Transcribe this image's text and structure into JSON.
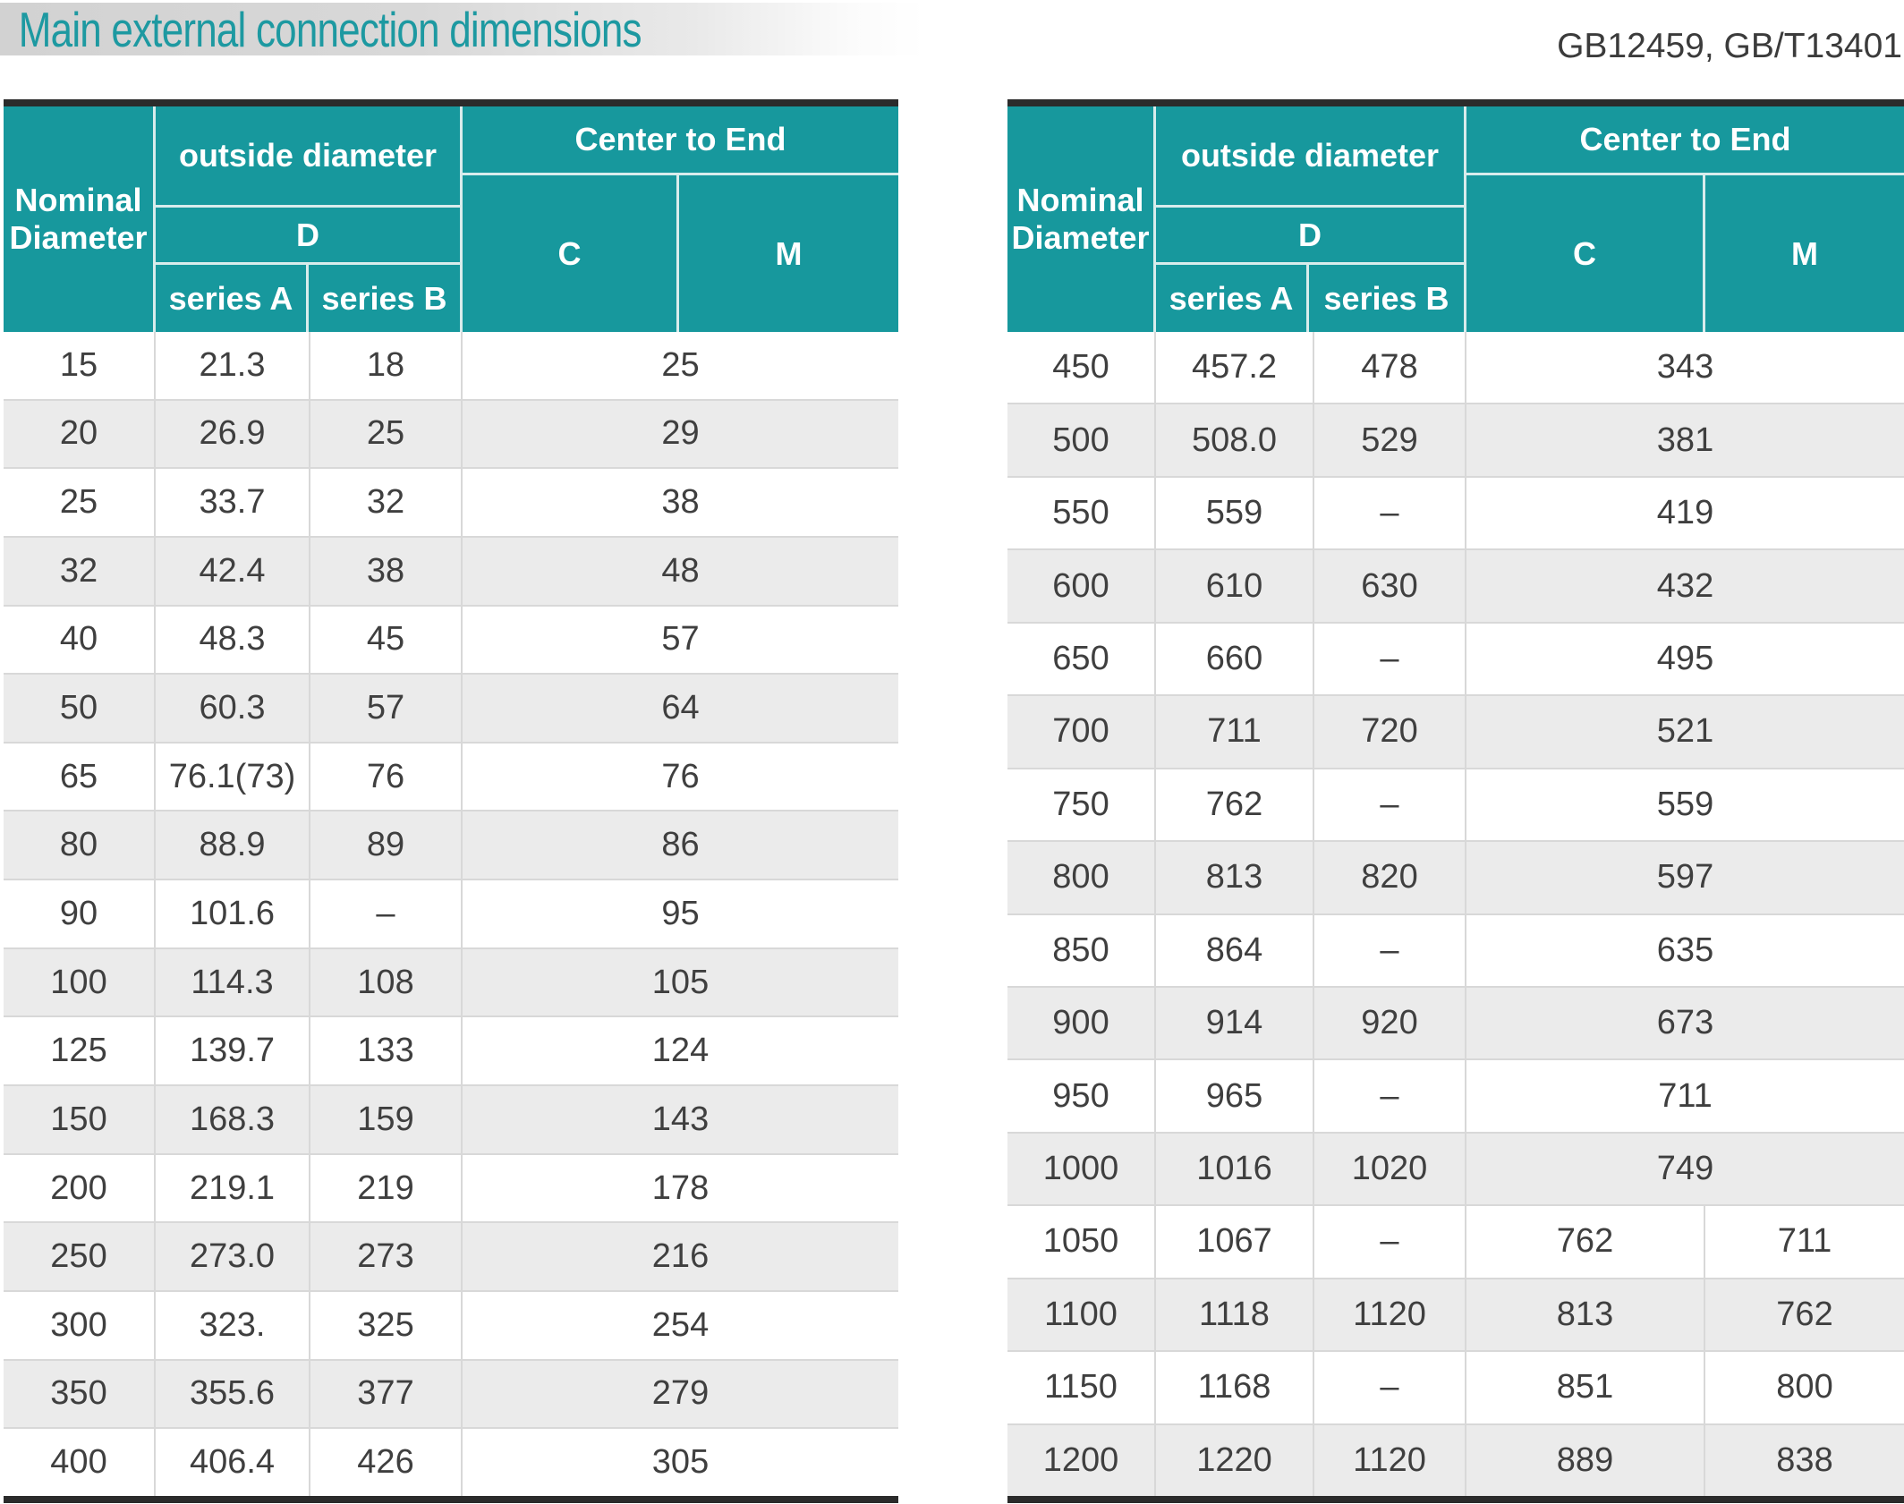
{
  "title": "Main external connection dimensions",
  "standard_ref": "GB12459, GB/T13401",
  "colors": {
    "accent_teal": "#17989d",
    "title_text": "#1d99a1",
    "row_alt": "#ebebeb",
    "table_border_dark": "#2b2b2b",
    "grid_line": "#d8d8d8",
    "data_text": "#3f3f3f",
    "header_text": "#ffffff",
    "title_band_start": "#d2d2d2",
    "title_band_end": "#ffffff"
  },
  "header_labels": {
    "nominal_line1": "Nominal",
    "nominal_line2": "Diameter",
    "outside_diameter": "outside diameter",
    "d": "D",
    "series_a": "series A",
    "series_b": "series B",
    "center_to_end": "Center to End",
    "c": "C",
    "m": "M"
  },
  "left_table": {
    "rows": [
      {
        "dn": "15",
        "a": "21.3",
        "b": "18",
        "cm": "25"
      },
      {
        "dn": "20",
        "a": "26.9",
        "b": "25",
        "cm": "29"
      },
      {
        "dn": "25",
        "a": "33.7",
        "b": "32",
        "cm": "38"
      },
      {
        "dn": "32",
        "a": "42.4",
        "b": "38",
        "cm": "48"
      },
      {
        "dn": "40",
        "a": "48.3",
        "b": "45",
        "cm": "57"
      },
      {
        "dn": "50",
        "a": "60.3",
        "b": "57",
        "cm": "64"
      },
      {
        "dn": "65",
        "a": "76.1(73)",
        "b": "76",
        "cm": "76"
      },
      {
        "dn": "80",
        "a": "88.9",
        "b": "89",
        "cm": "86"
      },
      {
        "dn": "90",
        "a": "101.6",
        "b": "–",
        "cm": "95"
      },
      {
        "dn": "100",
        "a": "114.3",
        "b": "108",
        "cm": "105"
      },
      {
        "dn": "125",
        "a": "139.7",
        "b": "133",
        "cm": "124"
      },
      {
        "dn": "150",
        "a": "168.3",
        "b": "159",
        "cm": "143"
      },
      {
        "dn": "200",
        "a": "219.1",
        "b": "219",
        "cm": "178"
      },
      {
        "dn": "250",
        "a": "273.0",
        "b": "273",
        "cm": "216"
      },
      {
        "dn": "300",
        "a": "323.",
        "b": "325",
        "cm": "254"
      },
      {
        "dn": "350",
        "a": "355.6",
        "b": "377",
        "cm": "279"
      },
      {
        "dn": "400",
        "a": "406.4",
        "b": "426",
        "cm": "305"
      }
    ]
  },
  "right_table": {
    "rows": [
      {
        "dn": "450",
        "a": "457.2",
        "b": "478",
        "cm": "343"
      },
      {
        "dn": "500",
        "a": "508.0",
        "b": "529",
        "cm": "381"
      },
      {
        "dn": "550",
        "a": "559",
        "b": "–",
        "cm": "419"
      },
      {
        "dn": "600",
        "a": "610",
        "b": "630",
        "cm": "432"
      },
      {
        "dn": "650",
        "a": "660",
        "b": "–",
        "cm": "495"
      },
      {
        "dn": "700",
        "a": "711",
        "b": "720",
        "cm": "521"
      },
      {
        "dn": "750",
        "a": "762",
        "b": "–",
        "cm": "559"
      },
      {
        "dn": "800",
        "a": "813",
        "b": "820",
        "cm": "597"
      },
      {
        "dn": "850",
        "a": "864",
        "b": "–",
        "cm": "635"
      },
      {
        "dn": "900",
        "a": "914",
        "b": "920",
        "cm": "673"
      },
      {
        "dn": "950",
        "a": "965",
        "b": "–",
        "cm": "711"
      },
      {
        "dn": "1000",
        "a": "1016",
        "b": "1020",
        "cm": "749"
      },
      {
        "dn": "1050",
        "a": "1067",
        "b": "–",
        "c": "762",
        "m": "711"
      },
      {
        "dn": "1100",
        "a": "1118",
        "b": "1120",
        "c": "813",
        "m": "762"
      },
      {
        "dn": "1150",
        "a": "1168",
        "b": "–",
        "c": "851",
        "m": "800"
      },
      {
        "dn": "1200",
        "a": "1220",
        "b": "1120",
        "c": "889",
        "m": "838"
      }
    ]
  }
}
